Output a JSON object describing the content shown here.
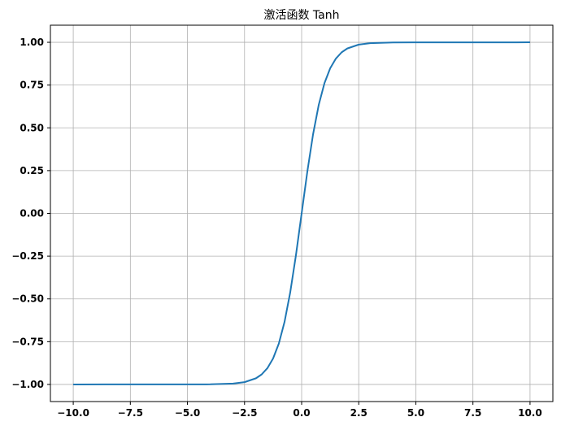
{
  "chart_data": {
    "type": "line",
    "title": "激活函数 Tanh",
    "xlabel": "",
    "ylabel": "",
    "xlim": [
      -11,
      11
    ],
    "ylim": [
      -1.1,
      1.1
    ],
    "grid": true,
    "legend": "none",
    "x_ticks": [
      -10.0,
      -7.5,
      -5.0,
      -2.5,
      0.0,
      2.5,
      5.0,
      7.5,
      10.0
    ],
    "x_tick_labels": [
      "−10.0",
      "−7.5",
      "−5.0",
      "−2.5",
      "0.0",
      "2.5",
      "5.0",
      "7.5",
      "10.0"
    ],
    "y_ticks": [
      1.0,
      0.75,
      0.5,
      0.25,
      0.0,
      -0.25,
      -0.5,
      -0.75,
      -1.0
    ],
    "y_tick_labels": [
      "1.00",
      "0.75",
      "0.50",
      "0.25",
      "0.00",
      "−0.25",
      "−0.50",
      "−0.75",
      "−1.00"
    ],
    "series": [
      {
        "color": "#1f77b4",
        "x": [
          -10,
          -4,
          -3,
          -2.5,
          -2,
          -1.75,
          -1.5,
          -1.25,
          -1,
          -0.75,
          -0.5,
          -0.25,
          0,
          0.25,
          0.5,
          0.75,
          1,
          1.25,
          1.5,
          1.75,
          2,
          2.5,
          3,
          4,
          10
        ],
        "y": [
          -1.0,
          -0.9993,
          -0.9951,
          -0.9866,
          -0.964,
          -0.9414,
          -0.9051,
          -0.8483,
          -0.7616,
          -0.6351,
          -0.4621,
          -0.2449,
          0.0,
          0.2449,
          0.4621,
          0.6351,
          0.7616,
          0.8483,
          0.9051,
          0.9414,
          0.964,
          0.9866,
          0.9951,
          0.9993,
          1.0
        ]
      }
    ]
  },
  "colors": {
    "line": "#1f77b4",
    "grid": "#b0b0b0",
    "axes": "#000000"
  }
}
